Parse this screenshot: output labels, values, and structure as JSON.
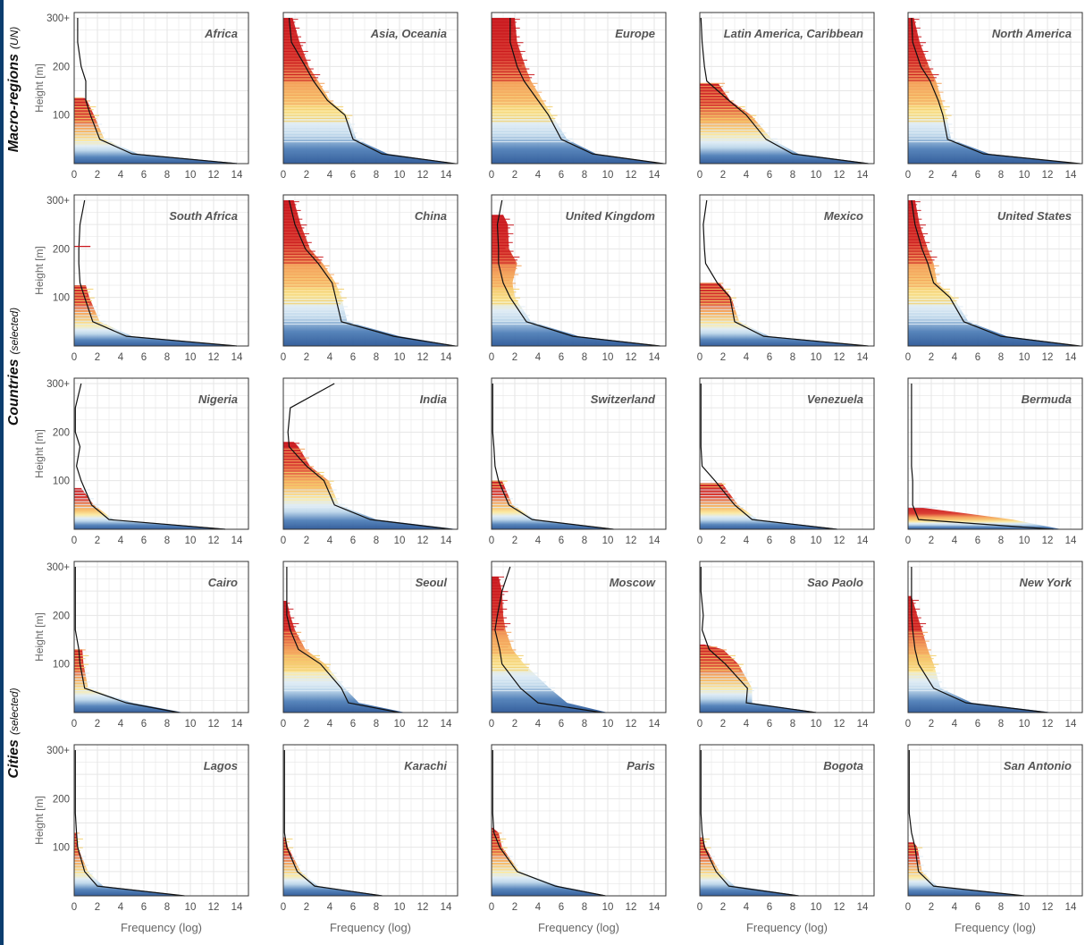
{
  "figure": {
    "row_groups": [
      {
        "label": "Macro-regions",
        "sub": "(UN)"
      },
      {
        "label": "Countries",
        "sub": "(selected)"
      },
      {
        "label": "Cities",
        "sub": "(selected)"
      }
    ],
    "y_axis_label": "Height [m]",
    "x_axis_label": "Frequency (log)",
    "y_ticks": [
      "100",
      "200",
      "300+"
    ],
    "x_ticks": [
      "0",
      "2",
      "4",
      "6",
      "8",
      "10",
      "12",
      "14"
    ],
    "colors": {
      "low": "#2b5797",
      "mid_low": "#dfecf5",
      "mid": "#fbe9a0",
      "mid_high": "#f4a259",
      "high": "#c9151b",
      "curve": "#111111",
      "grid": "#e6e6e6",
      "frame": "#333333"
    }
  },
  "chart_data": [
    {
      "type": "area",
      "title": "Africa",
      "row": 0,
      "col": 0,
      "xlim": [
        0,
        15
      ],
      "ylim": [
        0,
        300
      ],
      "ybins": [
        0,
        20,
        50,
        100,
        130,
        170,
        200,
        250,
        300
      ],
      "values": [
        14,
        5,
        2.2,
        1.4,
        1.0,
        1.0,
        0.6,
        0.3,
        0.3
      ],
      "bar_extent": [
        14.5,
        5.5,
        2.6,
        1.7,
        1.1,
        0.9,
        0.6,
        0.3,
        0.3
      ],
      "top_height": 135,
      "spike_height": 0
    },
    {
      "type": "area",
      "title": "Asia, Oceania",
      "row": 0,
      "col": 1,
      "xlim": [
        0,
        15
      ],
      "ylim": [
        0,
        300
      ],
      "ybins": [
        0,
        20,
        50,
        100,
        130,
        170,
        200,
        250,
        300
      ],
      "values": [
        14.8,
        8.5,
        6.0,
        5.3,
        3.8,
        2.6,
        1.9,
        0.7,
        0.5
      ],
      "bar_extent": [
        15,
        9,
        6.3,
        5.5,
        4.0,
        3.0,
        2.2,
        1.4,
        0.8
      ],
      "top_height": 300,
      "spike_height": 0
    },
    {
      "type": "area",
      "title": "Europe",
      "row": 0,
      "col": 2,
      "xlim": [
        0,
        15
      ],
      "ylim": [
        0,
        300
      ],
      "ybins": [
        0,
        20,
        50,
        100,
        130,
        170,
        200,
        250,
        300
      ],
      "values": [
        14.8,
        8.7,
        6.0,
        4.9,
        4.0,
        2.8,
        2.2,
        1.6,
        1.6
      ],
      "bar_extent": [
        15,
        9,
        6.5,
        5.2,
        4.4,
        3.4,
        2.9,
        2.2,
        2.0
      ],
      "top_height": 300,
      "spike_height": 0
    },
    {
      "type": "area",
      "title": "Latin America, Caribbean",
      "row": 0,
      "col": 3,
      "xlim": [
        0,
        15
      ],
      "ylim": [
        0,
        300
      ],
      "ybins": [
        0,
        20,
        50,
        100,
        130,
        170,
        200,
        250,
        300
      ],
      "values": [
        14.5,
        8.0,
        5.7,
        4.0,
        2.5,
        0.6,
        0.4,
        0.2,
        0.1
      ],
      "bar_extent": [
        14.8,
        8.5,
        6.2,
        4.4,
        2.6,
        1.6,
        0.9,
        0.4,
        0.2
      ],
      "top_height": 165,
      "spike_height": 0
    },
    {
      "type": "area",
      "title": "North America",
      "row": 0,
      "col": 4,
      "xlim": [
        0,
        15
      ],
      "ylim": [
        0,
        300
      ],
      "ybins": [
        0,
        20,
        50,
        100,
        130,
        170,
        200,
        250,
        300
      ],
      "values": [
        14.8,
        6.5,
        3.4,
        3.0,
        2.6,
        1.9,
        1.1,
        0.4,
        0.3
      ],
      "bar_extent": [
        15,
        7,
        3.7,
        3.3,
        2.9,
        2.4,
        1.8,
        1.0,
        0.5
      ],
      "top_height": 300,
      "spike_height": 0
    },
    {
      "type": "area",
      "title": "South Africa",
      "row": 1,
      "col": 0,
      "xlim": [
        0,
        15
      ],
      "ylim": [
        0,
        300
      ],
      "ybins": [
        0,
        20,
        50,
        100,
        130,
        170,
        200,
        250,
        300
      ],
      "values": [
        14,
        4.5,
        1.6,
        0.9,
        0.5,
        0.4,
        0.4,
        0.5,
        0.9
      ],
      "bar_extent": [
        14.3,
        5.0,
        2.2,
        1.3,
        1.0,
        0.5,
        0.4,
        0.3,
        0.2
      ],
      "top_height": 125,
      "spike_height": 205
    },
    {
      "type": "area",
      "title": "China",
      "row": 1,
      "col": 1,
      "xlim": [
        0,
        15
      ],
      "ylim": [
        0,
        300
      ],
      "ybins": [
        0,
        20,
        50,
        100,
        130,
        170,
        200,
        250,
        300
      ],
      "values": [
        14.8,
        9.5,
        5.0,
        4.5,
        4.2,
        3.0,
        1.9,
        1.0,
        0.5
      ],
      "bar_extent": [
        15,
        10,
        5.5,
        5.0,
        4.5,
        3.4,
        2.3,
        1.5,
        0.9
      ],
      "top_height": 300,
      "spike_height": 0
    },
    {
      "type": "area",
      "title": "United Kingdom",
      "row": 1,
      "col": 2,
      "xlim": [
        0,
        15
      ],
      "ylim": [
        0,
        300
      ],
      "ybins": [
        0,
        20,
        50,
        100,
        130,
        170,
        200,
        250,
        300
      ],
      "values": [
        14.5,
        7,
        3.0,
        1.6,
        1.0,
        0.6,
        0.6,
        0.5,
        0.9
      ],
      "bar_extent": [
        14.8,
        7.5,
        3.4,
        2.0,
        1.8,
        2.2,
        1.5,
        1.4,
        1.0
      ],
      "top_height": 270,
      "spike_height": 0
    },
    {
      "type": "area",
      "title": "Mexico",
      "row": 1,
      "col": 3,
      "xlim": [
        0,
        15
      ],
      "ylim": [
        0,
        300
      ],
      "ybins": [
        0,
        20,
        50,
        100,
        130,
        170,
        200,
        250,
        300
      ],
      "values": [
        14.5,
        5.5,
        3.0,
        2.6,
        1.5,
        0.5,
        0.4,
        0.3,
        0.6
      ],
      "bar_extent": [
        14.8,
        6.0,
        3.4,
        2.7,
        1.7,
        0.6,
        0.4,
        0.2,
        0.2
      ],
      "top_height": 130,
      "spike_height": 0
    },
    {
      "type": "area",
      "title": "United States",
      "row": 1,
      "col": 4,
      "xlim": [
        0,
        15
      ],
      "ylim": [
        0,
        300
      ],
      "ybins": [
        0,
        20,
        50,
        100,
        130,
        170,
        200,
        250,
        300
      ],
      "values": [
        14.8,
        8.0,
        4.8,
        3.6,
        2.2,
        1.7,
        1.2,
        0.6,
        0.3
      ],
      "bar_extent": [
        15,
        8.5,
        5.2,
        3.9,
        2.5,
        2.2,
        1.7,
        1.0,
        0.6
      ],
      "top_height": 300,
      "spike_height": 0
    },
    {
      "type": "area",
      "title": "Nigeria",
      "row": 2,
      "col": 0,
      "xlim": [
        0,
        15
      ],
      "ylim": [
        0,
        300
      ],
      "ybins": [
        0,
        20,
        50,
        100,
        130,
        170,
        200,
        250,
        300
      ],
      "values": [
        13,
        3.0,
        1.5,
        0.6,
        0.2,
        0.5,
        0.1,
        0.1,
        0.6
      ],
      "bar_extent": [
        13.5,
        3.4,
        1.7,
        0.6,
        0.2,
        0.2,
        0.1,
        0.1,
        0.1
      ],
      "top_height": 85,
      "spike_height": 0
    },
    {
      "type": "area",
      "title": "India",
      "row": 2,
      "col": 1,
      "xlim": [
        0,
        15
      ],
      "ylim": [
        0,
        300
      ],
      "ybins": [
        0,
        20,
        50,
        100,
        130,
        170,
        200,
        250,
        300
      ],
      "values": [
        14.5,
        7.5,
        4.4,
        3.5,
        2.0,
        0.5,
        0.4,
        0.6,
        4.4
      ],
      "bar_extent": [
        15,
        8.0,
        4.8,
        3.9,
        2.3,
        1.3,
        0.9,
        0.6,
        0.3
      ],
      "top_height": 180,
      "spike_height": 0
    },
    {
      "type": "area",
      "title": "Switzerland",
      "row": 2,
      "col": 2,
      "xlim": [
        0,
        15
      ],
      "ylim": [
        0,
        300
      ],
      "ybins": [
        0,
        20,
        50,
        100,
        130,
        170,
        200,
        250,
        300
      ],
      "values": [
        10.5,
        3.5,
        1.5,
        0.6,
        0.3,
        0.2,
        0.1,
        0.1,
        0.1
      ],
      "bar_extent": [
        10.8,
        3.8,
        1.8,
        0.9,
        0.5,
        0.2,
        0.1,
        0.1,
        0.1
      ],
      "top_height": 100,
      "spike_height": 0
    },
    {
      "type": "area",
      "title": "Venezuela",
      "row": 2,
      "col": 3,
      "xlim": [
        0,
        15
      ],
      "ylim": [
        0,
        300
      ],
      "ybins": [
        0,
        20,
        50,
        100,
        130,
        170,
        200,
        250,
        300
      ],
      "values": [
        11.8,
        4.5,
        3.0,
        1.3,
        0.2,
        0.1,
        0.1,
        0.1,
        0.1
      ],
      "bar_extent": [
        12.2,
        5.0,
        3.3,
        1.9,
        0.3,
        0.1,
        0.1,
        0.1,
        0.1
      ],
      "top_height": 95,
      "spike_height": 0
    },
    {
      "type": "area",
      "title": "Bermuda",
      "row": 2,
      "col": 4,
      "xlim": [
        0,
        15
      ],
      "ylim": [
        0,
        300
      ],
      "ybins": [
        0,
        20,
        50,
        100,
        130,
        170,
        200,
        250,
        300
      ],
      "values": [
        12.5,
        0.9,
        0.4,
        0.4,
        0.3,
        0.3,
        0.3,
        0.3,
        0.3
      ],
      "bar_extent": [
        13.2,
        9.0,
        1.0,
        0.5,
        0.3,
        0.2,
        0.1,
        0.1,
        0.1
      ],
      "top_height": 45,
      "spike_height": 0
    },
    {
      "type": "area",
      "title": "Cairo",
      "row": 3,
      "col": 0,
      "xlim": [
        0,
        15
      ],
      "ylim": [
        0,
        300
      ],
      "ybins": [
        0,
        20,
        50,
        100,
        130,
        170,
        200,
        250,
        300
      ],
      "values": [
        9,
        4.5,
        0.9,
        0.5,
        0.4,
        0.1,
        0.1,
        0.1,
        0.1
      ],
      "bar_extent": [
        9.4,
        5.0,
        1.2,
        0.8,
        0.7,
        0.1,
        0.1,
        0.1,
        0.1
      ],
      "top_height": 130,
      "spike_height": 0
    },
    {
      "type": "area",
      "title": "Seoul",
      "row": 3,
      "col": 1,
      "xlim": [
        0,
        15
      ],
      "ylim": [
        0,
        300
      ],
      "ybins": [
        0,
        20,
        50,
        100,
        130,
        170,
        200,
        250,
        300
      ],
      "values": [
        10,
        5.6,
        5.0,
        3.2,
        1.3,
        0.6,
        0.3,
        0.3,
        0.3
      ],
      "bar_extent": [
        10.5,
        6.5,
        5.3,
        3.6,
        1.9,
        1.0,
        0.6,
        0.3,
        0.1
      ],
      "top_height": 230,
      "spike_height": 0
    },
    {
      "type": "area",
      "title": "Moscow",
      "row": 3,
      "col": 2,
      "xlim": [
        0,
        15
      ],
      "ylim": [
        0,
        300
      ],
      "ybins": [
        0,
        20,
        50,
        100,
        130,
        170,
        200,
        250,
        300
      ],
      "values": [
        9.5,
        4.0,
        2.5,
        0.9,
        0.7,
        0.3,
        0.5,
        0.9,
        1.6
      ],
      "bar_extent": [
        10,
        6.5,
        5.0,
        2.8,
        1.8,
        1.2,
        1.0,
        0.9,
        0.6
      ],
      "top_height": 280,
      "spike_height": 0
    },
    {
      "type": "area",
      "title": "Sao Paolo",
      "row": 3,
      "col": 3,
      "xlim": [
        0,
        15
      ],
      "ylim": [
        0,
        300
      ],
      "ybins": [
        0,
        20,
        50,
        100,
        130,
        170,
        200,
        250,
        300
      ],
      "values": [
        10,
        4.0,
        4.1,
        2.2,
        0.8,
        0.2,
        0.3,
        0.1,
        0.1
      ],
      "bar_extent": [
        10.3,
        4.5,
        4.5,
        3.3,
        2.0,
        0.4,
        0.3,
        0.1,
        0.1
      ],
      "top_height": 140,
      "spike_height": 0
    },
    {
      "type": "area",
      "title": "New York",
      "row": 3,
      "col": 4,
      "xlim": [
        0,
        15
      ],
      "ylim": [
        0,
        300
      ],
      "ybins": [
        0,
        20,
        50,
        100,
        130,
        170,
        200,
        250,
        300
      ],
      "values": [
        12,
        5.0,
        2.2,
        0.9,
        0.6,
        0.4,
        0.3,
        0.3,
        0.3
      ],
      "bar_extent": [
        12.5,
        5.5,
        2.8,
        2.2,
        1.7,
        1.2,
        0.8,
        0.3,
        0.2
      ],
      "top_height": 240,
      "spike_height": 0
    },
    {
      "type": "area",
      "title": "Lagos",
      "row": 4,
      "col": 0,
      "xlim": [
        0,
        15
      ],
      "ylim": [
        0,
        300
      ],
      "ybins": [
        0,
        20,
        50,
        100,
        130,
        170,
        200,
        250,
        300
      ],
      "values": [
        9.5,
        2.0,
        0.9,
        0.3,
        0.2,
        0.1,
        0.1,
        0.1,
        0.1
      ],
      "bar_extent": [
        9.7,
        2.5,
        1.2,
        0.3,
        0.2,
        0.1,
        0.1,
        0.1,
        0.1
      ],
      "top_height": 130,
      "spike_height": 0
    },
    {
      "type": "area",
      "title": "Karachi",
      "row": 4,
      "col": 1,
      "xlim": [
        0,
        15
      ],
      "ylim": [
        0,
        300
      ],
      "ybins": [
        0,
        20,
        50,
        100,
        130,
        170,
        200,
        250,
        300
      ],
      "values": [
        8.5,
        2.7,
        1.2,
        0.3,
        0.1,
        0.1,
        0.1,
        0.1,
        0.1
      ],
      "bar_extent": [
        8.8,
        3.0,
        1.5,
        0.4,
        0.2,
        0.1,
        0.1,
        0.1,
        0.1
      ],
      "top_height": 120,
      "spike_height": 0
    },
    {
      "type": "area",
      "title": "Paris",
      "row": 4,
      "col": 2,
      "xlim": [
        0,
        15
      ],
      "ylim": [
        0,
        300
      ],
      "ybins": [
        0,
        20,
        50,
        100,
        130,
        170,
        200,
        250,
        300
      ],
      "values": [
        9.8,
        5.5,
        2.2,
        0.7,
        0.2,
        0.1,
        0.1,
        0.1,
        0.1
      ],
      "bar_extent": [
        10,
        5.8,
        2.4,
        0.9,
        0.6,
        0.1,
        0.1,
        0.1,
        0.1
      ],
      "top_height": 140,
      "spike_height": 0
    },
    {
      "type": "area",
      "title": "Bogota",
      "row": 4,
      "col": 3,
      "xlim": [
        0,
        15
      ],
      "ylim": [
        0,
        300
      ],
      "ybins": [
        0,
        20,
        50,
        100,
        130,
        170,
        200,
        250,
        300
      ],
      "values": [
        8.5,
        2.5,
        1.4,
        0.4,
        0.2,
        0.1,
        0.1,
        0.1,
        0.1
      ],
      "bar_extent": [
        8.8,
        3.0,
        1.7,
        0.5,
        0.2,
        0.1,
        0.1,
        0.1,
        0.1
      ],
      "top_height": 120,
      "spike_height": 0
    },
    {
      "type": "area",
      "title": "San Antonio",
      "row": 4,
      "col": 4,
      "xlim": [
        0,
        15
      ],
      "ylim": [
        0,
        300
      ],
      "ybins": [
        0,
        20,
        50,
        100,
        130,
        170,
        200,
        250,
        300
      ],
      "values": [
        10,
        2.2,
        0.9,
        0.6,
        0.3,
        0.1,
        0.1,
        0.1,
        0.1
      ],
      "bar_extent": [
        10.3,
        2.5,
        1.2,
        0.8,
        0.5,
        0.1,
        0.1,
        0.1,
        0.1
      ],
      "top_height": 110,
      "spike_height": 0
    }
  ]
}
